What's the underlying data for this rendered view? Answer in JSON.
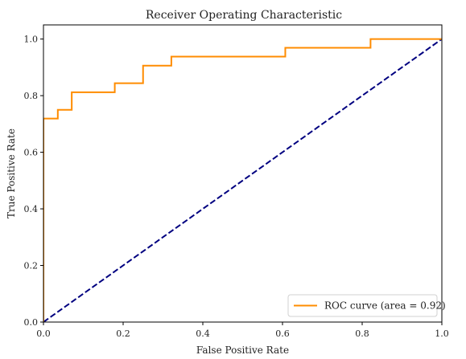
{
  "chart_data": {
    "type": "line",
    "title": "Receiver Operating Characteristic",
    "xlabel": "False Positive Rate",
    "ylabel": "True Positive Rate",
    "xlim": [
      0.0,
      1.0
    ],
    "ylim": [
      0.0,
      1.05
    ],
    "xticks": [
      "0.0",
      "0.2",
      "0.4",
      "0.6",
      "0.8",
      "1.0"
    ],
    "yticks": [
      "0.0",
      "0.2",
      "0.4",
      "0.6",
      "0.8",
      "1.0"
    ],
    "grid": false,
    "legend_position": "bottom-right",
    "series": [
      {
        "name": "ROC curve (area = 0.92)",
        "color": "#ff8c00",
        "style": "solid",
        "step": true,
        "x": [
          0.0,
          0.0,
          0.036,
          0.036,
          0.071,
          0.071,
          0.179,
          0.179,
          0.25,
          0.25,
          0.321,
          0.321,
          0.607,
          0.607,
          0.821,
          0.821,
          1.0
        ],
        "y": [
          0.0,
          0.719,
          0.719,
          0.75,
          0.75,
          0.812,
          0.812,
          0.844,
          0.844,
          0.906,
          0.906,
          0.938,
          0.938,
          0.969,
          0.969,
          1.0,
          1.0
        ]
      },
      {
        "name": "",
        "color": "#000080",
        "style": "dashed",
        "step": false,
        "x": [
          0.0,
          1.0
        ],
        "y": [
          0.0,
          1.0
        ]
      }
    ]
  }
}
